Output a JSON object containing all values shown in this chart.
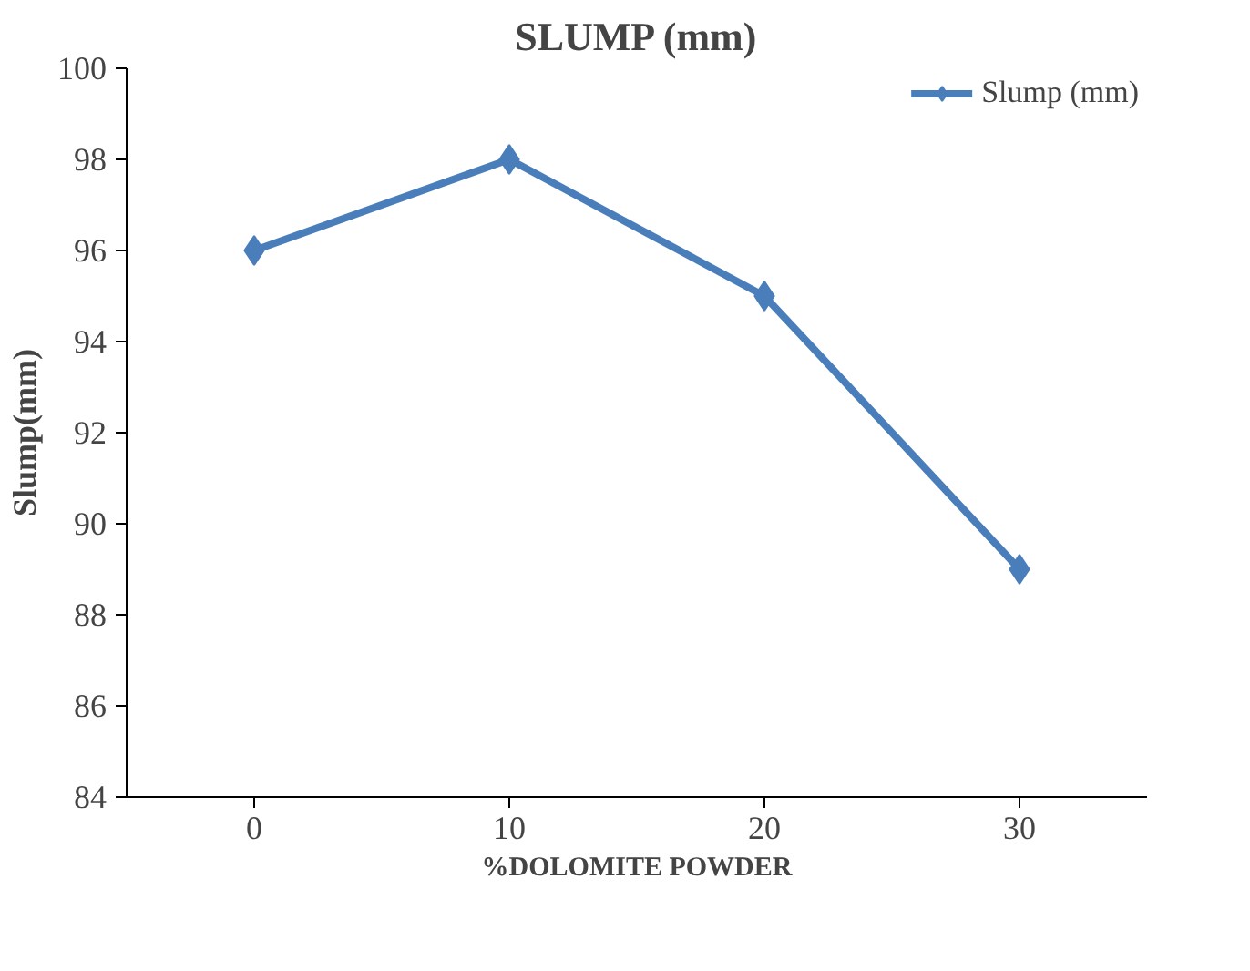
{
  "chart_data": {
    "type": "line",
    "title": "SLUMP (mm)",
    "xlabel": "%DOLOMITE POWDER",
    "ylabel": "Slump(mm)",
    "categories": [
      "0",
      "10",
      "20",
      "30"
    ],
    "series": [
      {
        "name": "Slump (mm)",
        "color": "#4a7ebb",
        "values": [
          96,
          98,
          95,
          89
        ]
      }
    ],
    "ylim": [
      84,
      100
    ],
    "yticks": [
      84,
      86,
      88,
      90,
      92,
      94,
      96,
      98,
      100
    ],
    "grid": false,
    "legend": "top right",
    "marker": "diamond",
    "line_style": "solid"
  }
}
